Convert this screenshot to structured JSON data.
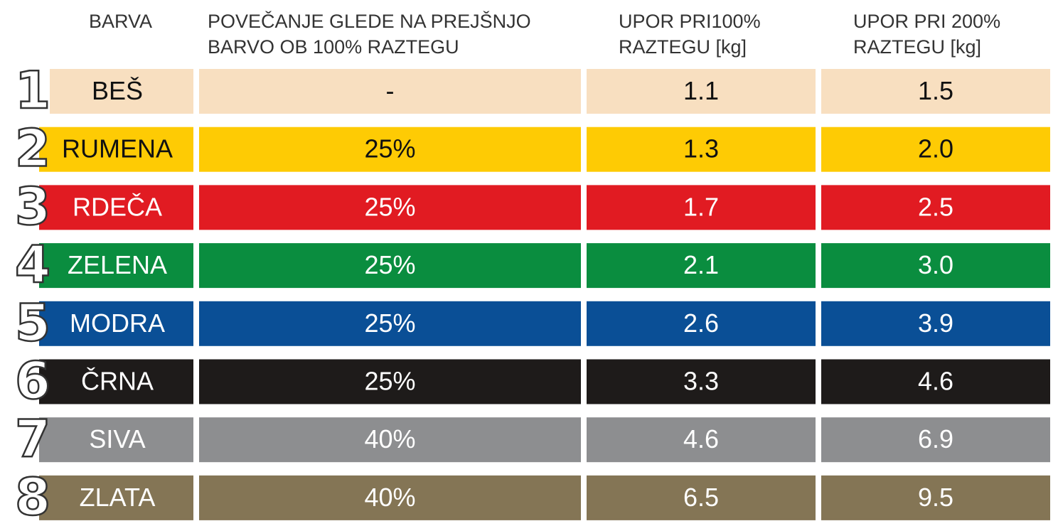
{
  "table": {
    "header": [
      [
        "BARVA"
      ],
      [
        "POVEČANJE GLEDE NA PREJŠNJO",
        "BARVO OB 100% RAZTEGU"
      ],
      [
        "UPOR PRI100%",
        "RAZTEGU [kg]"
      ],
      [
        "UPOR PRI 200%",
        "RAZTEGU [kg]"
      ]
    ],
    "rows": [
      {
        "number": "1",
        "cells": [
          "BEŠ",
          "-",
          "1.1",
          "1.5"
        ],
        "color": "#f8dfc0",
        "text_color": "#111111"
      },
      {
        "number": "2",
        "cells": [
          "RUMENA",
          "25%",
          "1.3",
          "2.0"
        ],
        "color": "#fecb04",
        "text_color": "#111111"
      },
      {
        "number": "3",
        "cells": [
          "RDEČA",
          "25%",
          "1.7",
          "2.5"
        ],
        "color": "#e11b22",
        "text_color": "#ffffff"
      },
      {
        "number": "4",
        "cells": [
          "ZELENA",
          "25%",
          "2.1",
          "3.0"
        ],
        "color": "#0a8d3f",
        "text_color": "#ffffff"
      },
      {
        "number": "5",
        "cells": [
          "MODRA",
          "25%",
          "2.6",
          "3.9"
        ],
        "color": "#0a4f96",
        "text_color": "#ffffff"
      },
      {
        "number": "6",
        "cells": [
          "ČRNA",
          "25%",
          "3.3",
          "4.6"
        ],
        "color": "#1e1b1a",
        "text_color": "#ffffff"
      },
      {
        "number": "7",
        "cells": [
          "SIVA",
          "40%",
          "4.6",
          "6.9"
        ],
        "color": "#8d8e90",
        "text_color": "#ffffff"
      },
      {
        "number": "8",
        "cells": [
          "ZLATA",
          "40%",
          "6.5",
          "9.5"
        ],
        "color": "#847555",
        "text_color": "#ffffff"
      }
    ]
  }
}
